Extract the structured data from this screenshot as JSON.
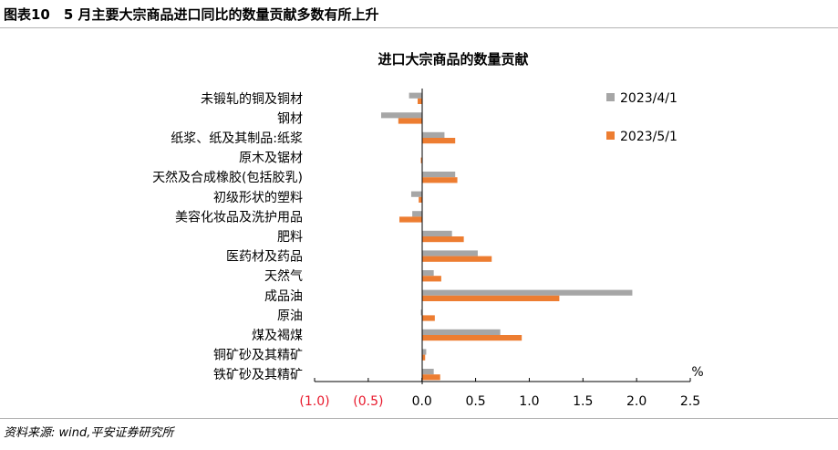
{
  "header": {
    "figure_title": "图表10　5 月主要大宗商品进口同比的数量贡献多数有所上升"
  },
  "footer": {
    "source": "资料来源: wind,平安证券研究所"
  },
  "colors": {
    "series_1": "#a6a6a6",
    "series_2": "#ed7d31",
    "negative_tick": "#e8192c",
    "axis": "#000000"
  },
  "chart_data": {
    "type": "bar",
    "orientation": "horizontal",
    "title": "进口大宗商品的数量贡献",
    "unit_label": "%",
    "categories": [
      "未锻轧的铜及铜材",
      "钢材",
      "纸浆、纸及其制品:纸浆",
      "原木及锯材",
      "天然及合成橡胶(包括胶乳)",
      "初级形状的塑料",
      "美容化妆品及洗护用品",
      "肥料",
      "医药材及药品",
      "天然气",
      "成品油",
      "原油",
      "煤及褐煤",
      "铜矿砂及其精矿",
      "铁矿砂及其精矿"
    ],
    "series": [
      {
        "name": "2023/4/1",
        "values": [
          -0.12,
          -0.38,
          0.21,
          0.0,
          0.31,
          -0.1,
          -0.09,
          0.28,
          0.52,
          0.11,
          1.96,
          -0.01,
          0.73,
          0.04,
          0.11
        ]
      },
      {
        "name": "2023/5/1",
        "values": [
          -0.04,
          -0.22,
          0.31,
          -0.01,
          0.33,
          -0.03,
          -0.21,
          0.39,
          0.65,
          0.18,
          1.28,
          0.12,
          0.93,
          0.03,
          0.17
        ]
      }
    ],
    "xlim": [
      -1.0,
      2.5
    ],
    "x_ticks": [
      -1.0,
      -0.5,
      0.0,
      0.5,
      1.0,
      1.5,
      2.0,
      2.5
    ],
    "x_tick_labels": [
      "(1.0)",
      "(0.5)",
      "0.0",
      "0.5",
      "1.0",
      "1.5",
      "2.0",
      "2.5"
    ],
    "grid": false,
    "legend": "top-right"
  }
}
